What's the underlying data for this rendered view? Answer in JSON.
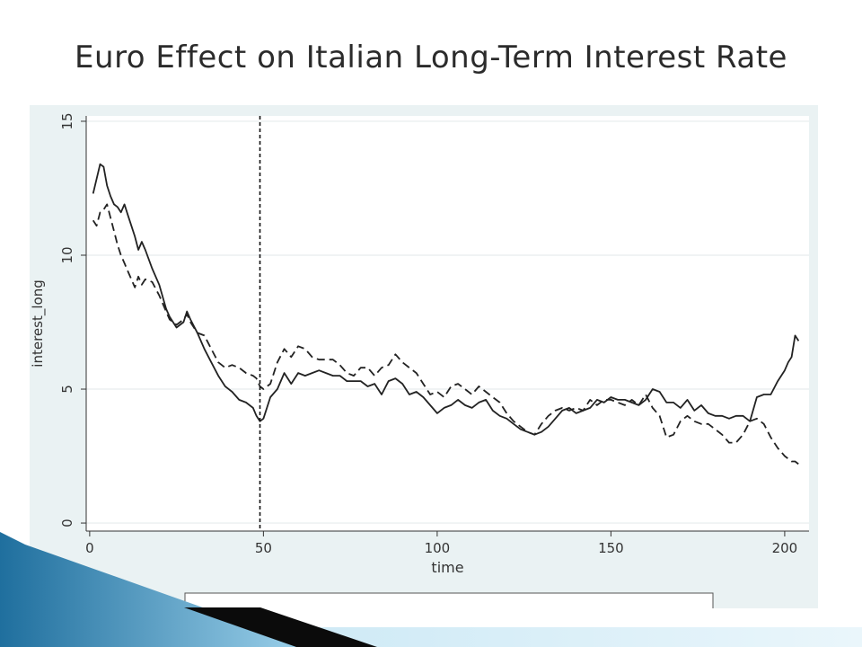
{
  "slide": {
    "title": "Euro Effect on Italian Long-Term Interest Rate"
  },
  "chart_data": {
    "type": "line",
    "title": "",
    "xlabel": "time",
    "ylabel": "interest_long",
    "xlim": [
      -1,
      207
    ],
    "ylim": [
      -0.3,
      15.2
    ],
    "x_ticks": [
      0,
      50,
      100,
      150,
      200
    ],
    "y_ticks": [
      0,
      5,
      10,
      15
    ],
    "grid": "horizontal",
    "vertical_reference_line_x": 49,
    "colors": {
      "plot_background": "#ffffff",
      "outer_background": "#eaf2f3",
      "grid": "#e6ecee",
      "line": "#222222"
    },
    "series": [
      {
        "style": "solid",
        "x": [
          1,
          3,
          4,
          5,
          6,
          7,
          8,
          9,
          10,
          11,
          12,
          13,
          14,
          15,
          16,
          18,
          20,
          22,
          23,
          25,
          27,
          28,
          29,
          31,
          33,
          35,
          37,
          39,
          41,
          43,
          45,
          47,
          48,
          49,
          50,
          52,
          54,
          56,
          58,
          60,
          62,
          64,
          66,
          68,
          70,
          72,
          74,
          76,
          78,
          80,
          82,
          84,
          86,
          88,
          90,
          92,
          94,
          96,
          98,
          100,
          102,
          104,
          106,
          108,
          110,
          112,
          114,
          116,
          118,
          120,
          122,
          124,
          126,
          128,
          130,
          132,
          134,
          136,
          138,
          140,
          142,
          144,
          146,
          148,
          150,
          152,
          154,
          156,
          158,
          160,
          162,
          164,
          166,
          168,
          170,
          172,
          174,
          176,
          178,
          180,
          182,
          184,
          186,
          188,
          190,
          192,
          194,
          196,
          198,
          200,
          201,
          202,
          203,
          204
        ],
        "y": [
          12.3,
          13.4,
          13.3,
          12.6,
          12.2,
          11.9,
          11.8,
          11.6,
          11.9,
          11.5,
          11.1,
          10.7,
          10.2,
          10.5,
          10.2,
          9.5,
          8.9,
          8.0,
          7.7,
          7.3,
          7.5,
          7.9,
          7.6,
          7.1,
          6.5,
          6.0,
          5.5,
          5.1,
          4.9,
          4.6,
          4.5,
          4.3,
          4.0,
          3.8,
          3.9,
          4.7,
          5.0,
          5.6,
          5.2,
          5.6,
          5.5,
          5.6,
          5.7,
          5.6,
          5.5,
          5.5,
          5.3,
          5.3,
          5.3,
          5.1,
          5.2,
          4.8,
          5.3,
          5.4,
          5.2,
          4.8,
          4.9,
          4.7,
          4.4,
          4.1,
          4.3,
          4.4,
          4.6,
          4.4,
          4.3,
          4.5,
          4.6,
          4.2,
          4.0,
          3.9,
          3.7,
          3.5,
          3.4,
          3.3,
          3.4,
          3.6,
          3.9,
          4.2,
          4.3,
          4.1,
          4.2,
          4.3,
          4.6,
          4.5,
          4.7,
          4.6,
          4.6,
          4.5,
          4.4,
          4.6,
          5.0,
          4.9,
          4.5,
          4.5,
          4.3,
          4.6,
          4.2,
          4.4,
          4.1,
          4.0,
          4.0,
          3.9,
          4.0,
          4.0,
          3.8,
          4.7,
          4.8,
          4.8,
          5.3,
          5.7,
          6.0,
          6.2,
          7.0,
          6.8
        ]
      },
      {
        "style": "dashed",
        "x": [
          1,
          2,
          3,
          4,
          5,
          6,
          7,
          8,
          9,
          10,
          11,
          12,
          13,
          14,
          15,
          16,
          18,
          20,
          22,
          23,
          25,
          27,
          28,
          29,
          31,
          33,
          35,
          37,
          39,
          41,
          43,
          45,
          47,
          48,
          49,
          50,
          52,
          54,
          56,
          58,
          60,
          62,
          64,
          66,
          68,
          70,
          72,
          74,
          76,
          78,
          80,
          82,
          84,
          86,
          88,
          90,
          92,
          94,
          96,
          98,
          100,
          102,
          104,
          106,
          108,
          110,
          112,
          114,
          116,
          118,
          120,
          122,
          124,
          126,
          128,
          130,
          132,
          134,
          136,
          138,
          140,
          142,
          144,
          146,
          148,
          150,
          152,
          154,
          156,
          158,
          160,
          162,
          164,
          166,
          168,
          170,
          172,
          174,
          176,
          178,
          180,
          182,
          184,
          186,
          188,
          190,
          192,
          194,
          196,
          198,
          200,
          201,
          202,
          203,
          204
        ],
        "y": [
          11.3,
          11.1,
          11.6,
          11.7,
          11.9,
          11.4,
          10.9,
          10.4,
          10.0,
          9.7,
          9.4,
          9.1,
          8.8,
          9.2,
          8.9,
          9.1,
          9.0,
          8.5,
          7.9,
          7.6,
          7.4,
          7.6,
          7.8,
          7.5,
          7.1,
          7.0,
          6.5,
          6.0,
          5.8,
          5.9,
          5.8,
          5.6,
          5.5,
          5.4,
          5.1,
          5.0,
          5.2,
          6.0,
          6.5,
          6.2,
          6.6,
          6.5,
          6.2,
          6.1,
          6.1,
          6.1,
          5.9,
          5.6,
          5.5,
          5.8,
          5.8,
          5.5,
          5.8,
          5.9,
          6.3,
          6.0,
          5.8,
          5.6,
          5.2,
          4.8,
          4.9,
          4.7,
          5.1,
          5.2,
          5.0,
          4.8,
          5.1,
          4.9,
          4.7,
          4.5,
          4.1,
          3.8,
          3.6,
          3.4,
          3.3,
          3.7,
          4.0,
          4.2,
          4.3,
          4.2,
          4.3,
          4.2,
          4.6,
          4.4,
          4.6,
          4.6,
          4.5,
          4.4,
          4.6,
          4.4,
          4.8,
          4.3,
          4.0,
          3.2,
          3.3,
          3.8,
          4.0,
          3.8,
          3.7,
          3.7,
          3.5,
          3.3,
          3.0,
          3.0,
          3.3,
          3.8,
          3.9,
          3.7,
          3.2,
          2.8,
          2.5,
          2.4,
          2.3,
          2.3,
          2.2
        ]
      }
    ]
  }
}
